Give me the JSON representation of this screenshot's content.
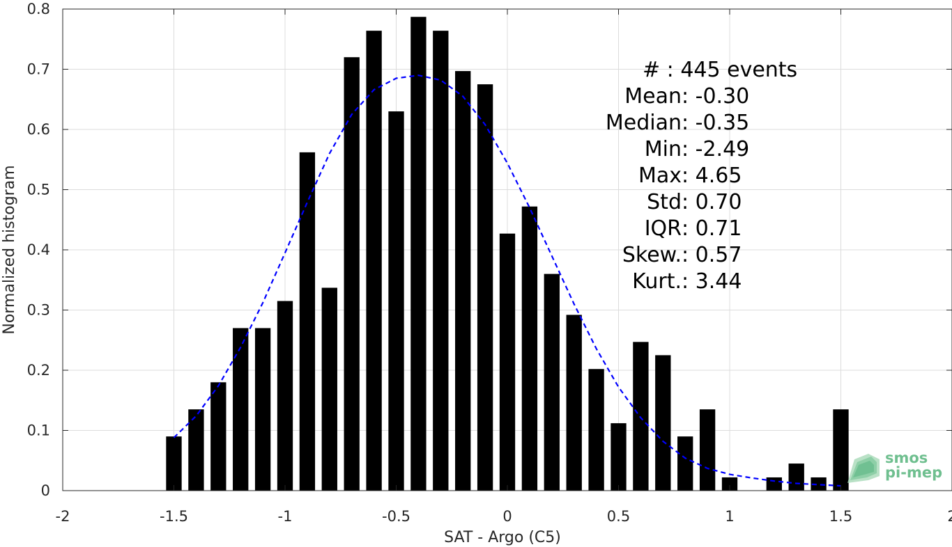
{
  "chart_data": {
    "type": "bar",
    "xlabel": "SAT - Argo (C5)",
    "ylabel": "Normalized histogram",
    "xlim": [
      -2,
      2
    ],
    "ylim": [
      0,
      0.8
    ],
    "xticks": [
      -2,
      -1.5,
      -1,
      -0.5,
      0,
      0.5,
      1,
      1.5,
      2
    ],
    "xtick_labels": [
      "-2",
      "-1.5",
      "-1",
      "-0.5",
      "0",
      "0.5",
      "1",
      "1.5",
      "2"
    ],
    "yticks": [
      0,
      0.1,
      0.2,
      0.3,
      0.4,
      0.5,
      0.6,
      0.7,
      0.8
    ],
    "ytick_labels": [
      "0",
      "0.1",
      "0.2",
      "0.3",
      "0.4",
      "0.5",
      "0.6",
      "0.7",
      "0.8"
    ],
    "grid": true,
    "bar_width": 0.07,
    "bars": {
      "x": [
        -1.5,
        -1.4,
        -1.3,
        -1.2,
        -1.1,
        -1.0,
        -0.9,
        -0.8,
        -0.7,
        -0.6,
        -0.5,
        -0.4,
        -0.3,
        -0.2,
        -0.1,
        0.0,
        0.1,
        0.2,
        0.3,
        0.4,
        0.5,
        0.6,
        0.7,
        0.8,
        0.9,
        1.0,
        1.1,
        1.2,
        1.3,
        1.4,
        1.5
      ],
      "values": [
        0.09,
        0.135,
        0.18,
        0.27,
        0.27,
        0.315,
        0.562,
        0.337,
        0.72,
        0.764,
        0.63,
        0.787,
        0.764,
        0.697,
        0.675,
        0.427,
        0.472,
        0.36,
        0.292,
        0.202,
        0.112,
        0.247,
        0.225,
        0.09,
        0.135,
        0.022,
        0.0,
        0.022,
        0.045,
        0.022,
        0.135
      ],
      "color": "#000000"
    },
    "fit_curve": {
      "style": "dashed",
      "color": "#0000ff",
      "x": [
        -1.5,
        -1.4,
        -1.3,
        -1.2,
        -1.1,
        -1.0,
        -0.9,
        -0.8,
        -0.7,
        -0.6,
        -0.5,
        -0.4,
        -0.3,
        -0.2,
        -0.1,
        0.0,
        0.1,
        0.2,
        0.3,
        0.4,
        0.5,
        0.6,
        0.7,
        0.8,
        0.9,
        1.0,
        1.1,
        1.2,
        1.3,
        1.4,
        1.5
      ],
      "y": [
        0.088,
        0.124,
        0.174,
        0.238,
        0.312,
        0.395,
        0.479,
        0.56,
        0.625,
        0.666,
        0.685,
        0.69,
        0.682,
        0.655,
        0.608,
        0.544,
        0.47,
        0.39,
        0.31,
        0.236,
        0.172,
        0.121,
        0.082,
        0.054,
        0.037,
        0.027,
        0.021,
        0.016,
        0.012,
        0.01,
        0.008
      ]
    },
    "annotations": [
      {
        "key": "#  ",
        "value": "445 events"
      },
      {
        "key": "Mean",
        "value": "-0.30"
      },
      {
        "key": "Median",
        "value": "-0.35"
      },
      {
        "key": "Min",
        "value": "-2.49"
      },
      {
        "key": "Max",
        "value": "4.65"
      },
      {
        "key": "Std",
        "value": "0.70"
      },
      {
        "key": "IQR",
        "value": "0.71"
      },
      {
        "key": "Skew.",
        "value": "0.57"
      },
      {
        "key": "Kurt.",
        "value": "3.44"
      }
    ]
  },
  "logo": {
    "line1": "smos",
    "line2": "pi-mep",
    "color": "#6fbf8f"
  }
}
